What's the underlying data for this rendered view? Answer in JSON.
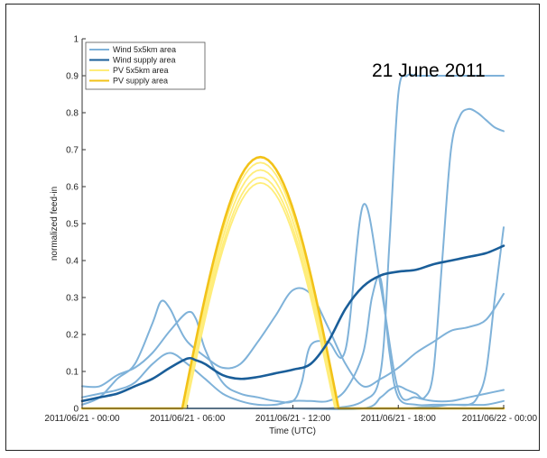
{
  "chart_data": {
    "type": "line",
    "title": "",
    "annotation": "21 June 2011",
    "xlabel": "Time (UTC)",
    "ylabel": "normalized feed-in",
    "xlim": [
      0,
      24
    ],
    "ylim": [
      0,
      1
    ],
    "xticks": [
      0,
      6,
      12,
      18,
      24
    ],
    "xtick_labels": [
      "2011/06/21 - 00:00",
      "2011/06/21 - 06:00",
      "2011/06/21 - 12:00",
      "2011/06/21 - 18:00",
      "2011/06/22 - 00:00"
    ],
    "yticks": [
      0,
      0.1,
      0.2,
      0.3,
      0.4,
      0.5,
      0.6,
      0.7,
      0.8,
      0.9,
      1
    ],
    "ytick_labels": [
      "0",
      "0.1",
      "0.2",
      "0.3",
      "0.4",
      "0.5",
      "0.6",
      "0.7",
      "0.8",
      "0.9",
      "1"
    ],
    "grid": false,
    "legend": {
      "position": "top-left",
      "entries": [
        {
          "label": "Wind 5x5km area",
          "color": "#7fb2d9"
        },
        {
          "label": "Wind supply area",
          "color": "#1a5e99"
        },
        {
          "label": "PV 5x5km area",
          "color": "#ffed7a"
        },
        {
          "label": "PV supply area",
          "color": "#f2c218"
        }
      ]
    },
    "series": [
      {
        "group": "Wind 5x5km area",
        "color": "#7fb2d9",
        "width": 2,
        "x": [
          0,
          1,
          2,
          3,
          4,
          4.5,
          5,
          5.5,
          6,
          7,
          8,
          9,
          10,
          11,
          12,
          13,
          14,
          15,
          16,
          17,
          18,
          19,
          20,
          21,
          22,
          23,
          24
        ],
        "y": [
          0.01,
          0.03,
          0.08,
          0.12,
          0.23,
          0.29,
          0.27,
          0.22,
          0.18,
          0.14,
          0.11,
          0.12,
          0.18,
          0.25,
          0.32,
          0.31,
          0.22,
          0.12,
          0.06,
          0.08,
          0.11,
          0.15,
          0.18,
          0.21,
          0.22,
          0.24,
          0.31
        ]
      },
      {
        "group": "Wind 5x5km area",
        "color": "#7fb2d9",
        "width": 2,
        "x": [
          0,
          1,
          2,
          3,
          4,
          5,
          6,
          6.5,
          7,
          8,
          9,
          10,
          11,
          12,
          12.5,
          13,
          14,
          15,
          16,
          17,
          18,
          19,
          20,
          21,
          22,
          23,
          24
        ],
        "y": [
          0.06,
          0.06,
          0.09,
          0.11,
          0.15,
          0.21,
          0.26,
          0.24,
          0.16,
          0.07,
          0.04,
          0.03,
          0.02,
          0.02,
          0.07,
          0.17,
          0.18,
          0.16,
          0.55,
          0.33,
          0.05,
          0.03,
          0.02,
          0.02,
          0.03,
          0.04,
          0.05
        ]
      },
      {
        "group": "Wind 5x5km area",
        "color": "#7fb2d9",
        "width": 2,
        "x": [
          0,
          1,
          2,
          3,
          4,
          5,
          6,
          7,
          8,
          9,
          10,
          11,
          12,
          13,
          14,
          15,
          16,
          16.5,
          17,
          17.5,
          18,
          19,
          20,
          21,
          22,
          23,
          24
        ],
        "y": [
          0.03,
          0.04,
          0.05,
          0.07,
          0.12,
          0.15,
          0.12,
          0.08,
          0.04,
          0.02,
          0.01,
          0.01,
          0.02,
          0.02,
          0.02,
          0.05,
          0.15,
          0.3,
          0.35,
          0.15,
          0.03,
          0.01,
          0.01,
          0.01,
          0.01,
          0.01,
          0.02
        ]
      },
      {
        "group": "Wind 5x5km area",
        "color": "#7fb2d9",
        "width": 2,
        "x": [
          0,
          2,
          4,
          6,
          8,
          10,
          12,
          14,
          16,
          17,
          17.5,
          18,
          18.5,
          19,
          19.5,
          20,
          21,
          21.5,
          22,
          22.5,
          23,
          23.5,
          24
        ],
        "y": [
          0,
          0,
          0,
          0,
          0,
          0,
          0,
          0,
          0.02,
          0.1,
          0.45,
          0.85,
          0.9,
          0.9,
          0.9,
          0.9,
          0.9,
          0.9,
          0.9,
          0.9,
          0.9,
          0.9,
          0.9
        ]
      },
      {
        "group": "Wind 5x5km area",
        "color": "#7fb2d9",
        "width": 2,
        "x": [
          0,
          4,
          8,
          12,
          16,
          17,
          17.5,
          18,
          18.5,
          19,
          19.5,
          20,
          20.5,
          21,
          21.5,
          22,
          22.5,
          23,
          23.5,
          24
        ],
        "y": [
          0,
          0,
          0,
          0,
          0,
          0.03,
          0.05,
          0.06,
          0.05,
          0.04,
          0.03,
          0.1,
          0.4,
          0.7,
          0.79,
          0.81,
          0.8,
          0.78,
          0.76,
          0.75
        ]
      },
      {
        "group": "Wind 5x5km area",
        "color": "#7fb2d9",
        "width": 2,
        "x": [
          0,
          4,
          8,
          12,
          16,
          18,
          20,
          21,
          22,
          22.5,
          23,
          23.5,
          24
        ],
        "y": [
          0,
          0,
          0,
          0,
          0,
          0,
          0.005,
          0.01,
          0.01,
          0.03,
          0.1,
          0.3,
          0.49
        ]
      },
      {
        "group": "Wind supply area",
        "color": "#1a5e99",
        "width": 2.6,
        "x": [
          0,
          1,
          2,
          3,
          4,
          5,
          6,
          6.5,
          7,
          8,
          9,
          10,
          11,
          12,
          13,
          14,
          15,
          16,
          17,
          18,
          19,
          20,
          21,
          22,
          23,
          24
        ],
        "y": [
          0.02,
          0.03,
          0.04,
          0.06,
          0.08,
          0.11,
          0.135,
          0.13,
          0.12,
          0.09,
          0.08,
          0.085,
          0.095,
          0.105,
          0.12,
          0.18,
          0.27,
          0.33,
          0.36,
          0.37,
          0.375,
          0.39,
          0.4,
          0.41,
          0.42,
          0.44
        ]
      },
      {
        "group": "PV 5x5km area",
        "color": "#ffed7a",
        "width": 1.8,
        "sine": {
          "start": 5.9,
          "end": 14.4,
          "peak": 0.61
        }
      },
      {
        "group": "PV 5x5km area",
        "color": "#ffed7a",
        "width": 1.8,
        "sine": {
          "start": 5.85,
          "end": 14.45,
          "peak": 0.625
        }
      },
      {
        "group": "PV 5x5km area",
        "color": "#ffed7a",
        "width": 1.8,
        "sine": {
          "start": 5.8,
          "end": 14.5,
          "peak": 0.645
        }
      },
      {
        "group": "PV 5x5km area",
        "color": "#ffed7a",
        "width": 1.8,
        "sine": {
          "start": 5.75,
          "end": 14.55,
          "peak": 0.665
        }
      },
      {
        "group": "PV supply area",
        "color": "#f2c218",
        "width": 2.6,
        "sine": {
          "start": 5.7,
          "end": 14.6,
          "peak": 0.68
        }
      }
    ]
  }
}
